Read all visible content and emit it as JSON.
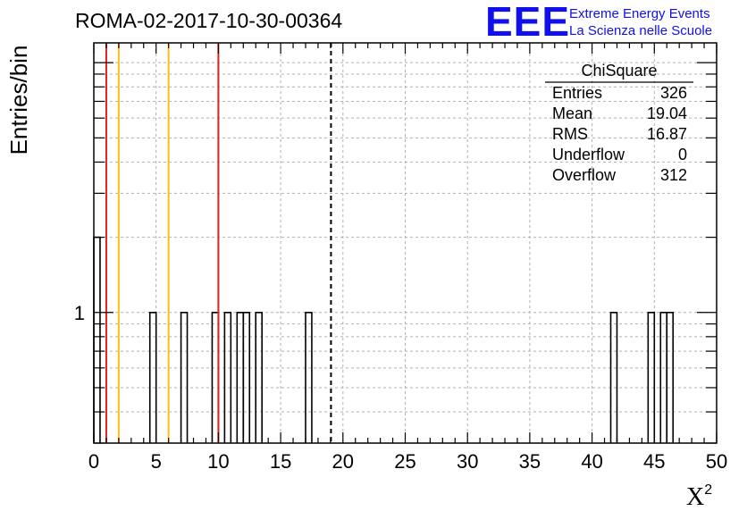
{
  "chart_data": {
    "type": "bar",
    "title": "ROMA-02-2017-10-30-00364",
    "ylabel": "Entries/bin",
    "xlabel_main": "X",
    "xlabel_sup": "2",
    "xlim": [
      0,
      50
    ],
    "ylim_log": [
      0.3,
      12
    ],
    "y_log_scale": true,
    "grid": true,
    "x_ticks": [
      "0",
      "5",
      "10",
      "15",
      "20",
      "25",
      "30",
      "35",
      "40",
      "45",
      "50"
    ],
    "x_tick_values": [
      0,
      5,
      10,
      15,
      20,
      25,
      30,
      35,
      40,
      45,
      50
    ],
    "y_tick_labels": [
      {
        "value": 1,
        "label": "1"
      }
    ],
    "bin_width": 0.5,
    "bins": [
      {
        "x": 0.25,
        "value": 2
      },
      {
        "x": 4.75,
        "value": 1
      },
      {
        "x": 7.25,
        "value": 1
      },
      {
        "x": 9.75,
        "value": 1
      },
      {
        "x": 10.75,
        "value": 1
      },
      {
        "x": 11.75,
        "value": 1
      },
      {
        "x": 12.25,
        "value": 1
      },
      {
        "x": 13.25,
        "value": 1
      },
      {
        "x": 17.25,
        "value": 1
      },
      {
        "x": 41.75,
        "value": 1
      },
      {
        "x": 44.75,
        "value": 1
      },
      {
        "x": 45.75,
        "value": 1
      },
      {
        "x": 46.25,
        "value": 1
      }
    ],
    "vertical_lines": [
      {
        "x": 1.0,
        "color": "#dd2222",
        "style": "solid"
      },
      {
        "x": 2.0,
        "color": "#f2c21b",
        "style": "solid"
      },
      {
        "x": 6.0,
        "color": "#f2c21b",
        "style": "solid"
      },
      {
        "x": 10.0,
        "color": "#dd2222",
        "style": "solid"
      },
      {
        "x": 19.04,
        "color": "#000000",
        "style": "dashed"
      }
    ],
    "stats_box": {
      "name": "ChiSquare",
      "rows": [
        {
          "label": "Entries",
          "value": "326"
        },
        {
          "label": "Mean",
          "value": "19.04"
        },
        {
          "label": "RMS",
          "value": "16.87"
        },
        {
          "label": "Underflow",
          "value": "0"
        },
        {
          "label": "Overflow",
          "value": "312"
        }
      ]
    },
    "colors": {
      "eee_blue": "#1010ee",
      "grid": "#b0b0b0"
    }
  },
  "logo": {
    "letters": "EEE",
    "line1": "Extreme Energy Events",
    "line2": "La Scienza nelle Scuole"
  }
}
